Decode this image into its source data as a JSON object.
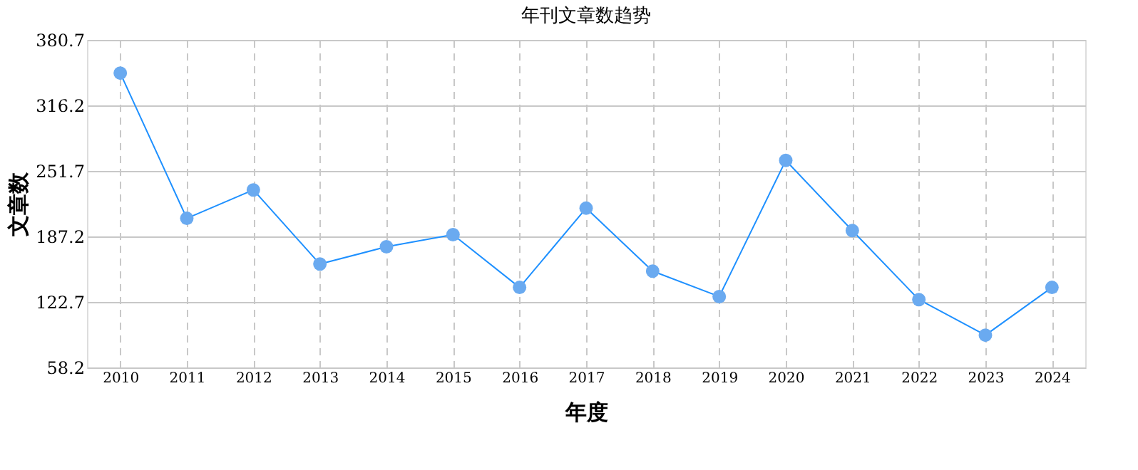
{
  "chart_data": {
    "type": "line",
    "title": "年刊文章数趋势",
    "xlabel": "年度",
    "ylabel": "文章数",
    "categories": [
      "2010",
      "2011",
      "2012",
      "2013",
      "2014",
      "2015",
      "2016",
      "2017",
      "2018",
      "2019",
      "2020",
      "2021",
      "2022",
      "2023",
      "2024"
    ],
    "series": [
      {
        "color": "#1e90ff",
        "values": [
          348,
          205,
          233,
          160,
          177,
          189,
          137,
          215,
          153,
          128,
          262,
          193,
          125,
          90,
          137
        ]
      }
    ],
    "ylim": [
      58.2,
      380.7
    ],
    "yticks": [
      58.2,
      122.7,
      187.2,
      251.7,
      316.2,
      380.7
    ],
    "grid": true,
    "marker": "circle",
    "line_style": "solid"
  }
}
